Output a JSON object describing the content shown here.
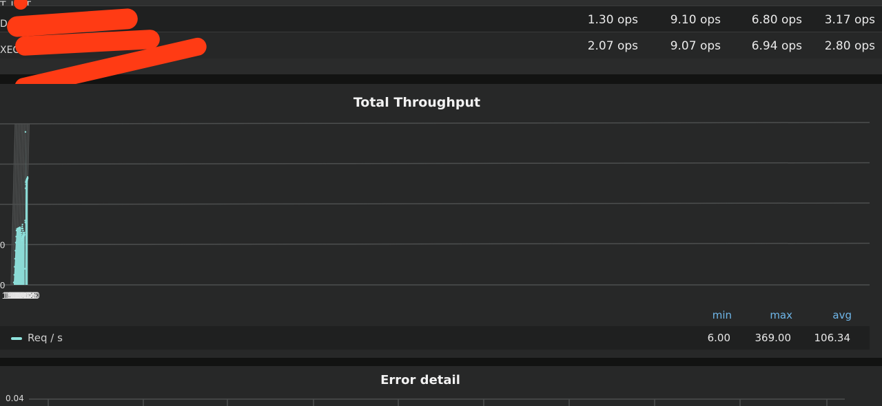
{
  "stats_table": {
    "rows": [
      {
        "name": "T_LIST",
        "cells": []
      },
      {
        "name": "D",
        "cells": [
          "1.30 ops",
          "9.10 ops",
          "6.80 ops",
          "3.17 ops"
        ]
      },
      {
        "name": "XEC",
        "cells": [
          "2.07 ops",
          "9.07 ops",
          "6.94 ops",
          "2.80 ops"
        ]
      }
    ],
    "redaction_color": "#ff3b14"
  },
  "throughput_panel": {
    "title": "Total Throughput",
    "y_ticks": [
      "0",
      "0"
    ],
    "legend": {
      "label": "Req / s",
      "color": "#8fe3dd"
    },
    "stats": {
      "min_label": "min",
      "max_label": "max",
      "avg_label": "avg",
      "min": "6.00",
      "max": "369.00",
      "avg": "106.34"
    }
  },
  "chart_data": {
    "type": "area",
    "title": "Total Throughput",
    "xlabel": "",
    "ylabel": "",
    "x_ticks": [
      "18:02",
      "18:04",
      "18:06",
      "18:08",
      "18:10",
      "18:12",
      "18:14",
      "18:16",
      "18:18",
      "18:20"
    ],
    "ylim": [
      0,
      400
    ],
    "grid": true,
    "legend_position": "bottom-left",
    "series": [
      {
        "name": "Req / s",
        "color": "#8fe3dd",
        "points": [
          [
            "18:01.9",
            6
          ],
          [
            "18:02.5",
            25
          ],
          [
            "18:03.0",
            45
          ],
          [
            "18:03.5",
            65
          ],
          [
            "18:04.0",
            85
          ],
          [
            "18:04.5",
            105
          ],
          [
            "18:05.0",
            120
          ],
          [
            "18:05.5",
            135
          ],
          [
            "18:06.0",
            139
          ],
          [
            "18:06.5",
            138
          ],
          [
            "18:07.0",
            140
          ],
          [
            "18:07.5",
            139
          ],
          [
            "18:08.0",
            141
          ],
          [
            "18:08.5",
            140
          ],
          [
            "18:09.0",
            142
          ],
          [
            "18:09.5",
            140
          ],
          [
            "18:10.0",
            143
          ],
          [
            "18:10.5",
            141
          ],
          [
            "18:11.0",
            136
          ],
          [
            "18:11.3",
            130
          ],
          [
            "18:11.6",
            125
          ],
          [
            "18:11.9",
            130
          ],
          [
            "18:12.2",
            115
          ],
          [
            "18:12.4",
            140
          ],
          [
            "18:12.6",
            110
          ],
          [
            "18:12.8",
            145
          ],
          [
            "18:13.0",
            120
          ],
          [
            "18:13.2",
            150
          ],
          [
            "18:13.4",
            118
          ],
          [
            "18:13.6",
            140
          ],
          [
            "18:13.8",
            122
          ],
          [
            "18:14.0",
            135
          ],
          [
            "18:14.3",
            120
          ],
          [
            "18:14.6",
            130
          ],
          [
            "18:14.9",
            125
          ],
          [
            "18:15.2",
            128
          ],
          [
            "18:15.5",
            122
          ],
          [
            "18:15.8",
            130
          ],
          [
            "18:16.0",
            125
          ],
          [
            "18:16.4",
            40
          ],
          [
            "18:16.6",
            160
          ],
          [
            "18:16.8",
            155
          ],
          [
            "18:17.1",
            380
          ],
          [
            "18:17.3",
            240
          ],
          [
            "18:17.5",
            255
          ],
          [
            "18:17.7",
            250
          ],
          [
            "18:17.9",
            258
          ],
          [
            "18:18.1",
            255
          ],
          [
            "18:18.3",
            260
          ],
          [
            "18:18.5",
            257
          ],
          [
            "18:18.7",
            262
          ],
          [
            "18:18.9",
            258
          ],
          [
            "18:19.1",
            264
          ],
          [
            "18:19.3",
            260
          ],
          [
            "18:19.5",
            265
          ],
          [
            "18:19.7",
            262
          ],
          [
            "18:19.9",
            268
          ],
          [
            "18:20.1",
            265
          ]
        ]
      }
    ]
  },
  "error_panel": {
    "title": "Error detail",
    "y_top_tick": "0.04"
  }
}
